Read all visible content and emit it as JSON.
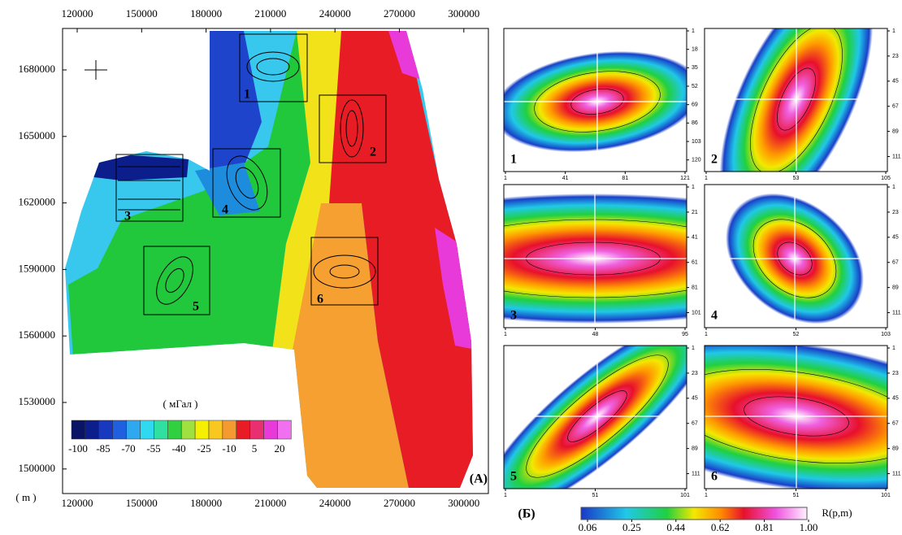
{
  "map": {
    "x_ticks": [
      120000,
      150000,
      180000,
      210000,
      240000,
      270000,
      300000
    ],
    "y_ticks": [
      1680000,
      1650000,
      1620000,
      1590000,
      1560000,
      1530000,
      1500000
    ],
    "unit": "( m )",
    "label": "(A)",
    "boxes": [
      "1",
      "2",
      "3",
      "4",
      "5",
      "6"
    ],
    "legend": {
      "title": "( мГал )",
      "ticks": [
        -100,
        -85,
        -70,
        -55,
        -40,
        -25,
        -10,
        5,
        20
      ]
    }
  },
  "panels": [
    {
      "label": "1",
      "y_ticks": [
        1,
        18,
        35,
        52,
        69,
        86,
        103,
        120
      ],
      "x_ticks": [
        1,
        41,
        81,
        121
      ]
    },
    {
      "label": "2",
      "y_ticks": [
        1,
        23,
        45,
        67,
        89,
        111
      ],
      "x_ticks": [
        1,
        53,
        105
      ]
    },
    {
      "label": "3",
      "y_ticks": [
        1,
        21,
        41,
        61,
        81,
        101
      ],
      "x_ticks": [
        1,
        48,
        95
      ]
    },
    {
      "label": "4",
      "y_ticks": [
        1,
        23,
        45,
        67,
        89,
        111
      ],
      "x_ticks": [
        1,
        52,
        103
      ]
    },
    {
      "label": "5",
      "y_ticks": [
        1,
        23,
        45,
        67,
        89,
        111
      ],
      "x_ticks": [
        1,
        51,
        101
      ]
    },
    {
      "label": "6",
      "y_ticks": [
        1,
        23,
        45,
        67,
        89,
        111
      ],
      "x_ticks": [
        1,
        51,
        101
      ]
    }
  ],
  "panel_group_label": "(Б)",
  "colorbar": {
    "title": "R(p,m)",
    "ticks": [
      0.06,
      0.25,
      0.44,
      0.62,
      0.81,
      {
        "value": 1,
        "label": "1.00"
      }
    ]
  }
}
